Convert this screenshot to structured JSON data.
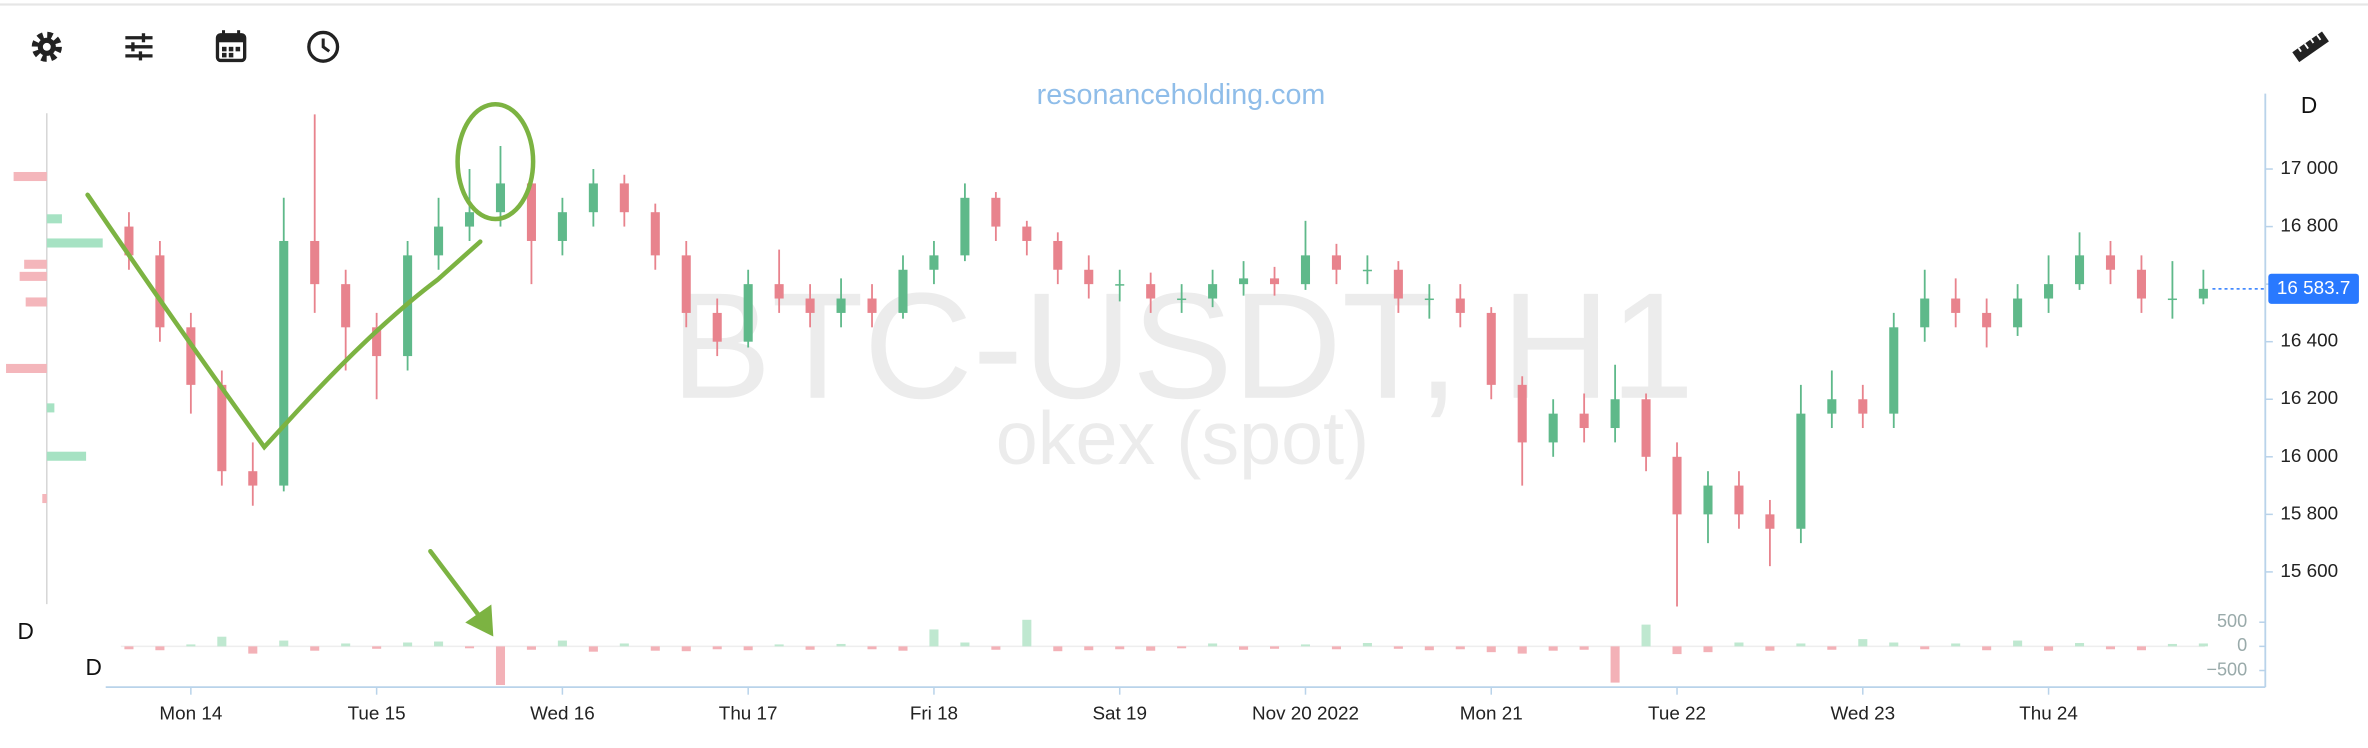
{
  "chart_data": {
    "type": "ohlc",
    "title": "BTC-USDT, H1",
    "subtitle": "okex (spot)",
    "watermark": "resonanceholding.com",
    "interval_label": "D",
    "up_color": "#5fb98a",
    "down_color": "#e8838d",
    "x": [
      -8,
      -4,
      0,
      4,
      8,
      12,
      16,
      20,
      24,
      28,
      32,
      36,
      40,
      44,
      48,
      52,
      56,
      60,
      64,
      68,
      72,
      76,
      80,
      84,
      88,
      92,
      96,
      100,
      104,
      108,
      112,
      116,
      120,
      124,
      128,
      132,
      136,
      140,
      144,
      148,
      152,
      156,
      160,
      164,
      168,
      172,
      176,
      180,
      184,
      188,
      192,
      196,
      200,
      204,
      208,
      212,
      216,
      220,
      224,
      228,
      232,
      236,
      240,
      244,
      248,
      252,
      256,
      260
    ],
    "open": [
      16800,
      16700,
      16450,
      16250,
      15950,
      15900,
      16750,
      16600,
      16450,
      16350,
      16700,
      16800,
      16850,
      16950,
      16750,
      16850,
      16950,
      16850,
      16700,
      16500,
      16400,
      16600,
      16550,
      16500,
      16550,
      16500,
      16650,
      16700,
      16900,
      16800,
      16750,
      16650,
      16600,
      16600,
      16550,
      16550,
      16600,
      16620,
      16600,
      16700,
      16650,
      16650,
      16550,
      16550,
      16500,
      16250,
      16050,
      16150,
      16100,
      16200,
      16000,
      15800,
      15900,
      15800,
      15750,
      16150,
      16200,
      16150,
      16450,
      16550,
      16500,
      16450,
      16550,
      16600,
      16700,
      16650,
      16550,
      16550
    ],
    "high": [
      16850,
      16750,
      16500,
      16300,
      16050,
      16900,
      17190,
      16650,
      16500,
      16750,
      16900,
      17000,
      17080,
      17000,
      16900,
      17000,
      16980,
      16880,
      16750,
      16550,
      16650,
      16720,
      16600,
      16620,
      16600,
      16700,
      16750,
      16950,
      16920,
      16820,
      16780,
      16700,
      16650,
      16640,
      16600,
      16650,
      16680,
      16660,
      16820,
      16740,
      16700,
      16680,
      16600,
      16600,
      16520,
      16280,
      16200,
      16220,
      16320,
      16220,
      16050,
      15950,
      15950,
      15850,
      16250,
      16300,
      16250,
      16500,
      16650,
      16620,
      16550,
      16600,
      16700,
      16780,
      16750,
      16700,
      16680,
      16650
    ],
    "low": [
      16650,
      16400,
      16150,
      15900,
      15830,
      15880,
      16500,
      16300,
      16200,
      16300,
      16650,
      16750,
      16800,
      16600,
      16700,
      16800,
      16800,
      16650,
      16450,
      16350,
      16380,
      16500,
      16450,
      16450,
      16450,
      16480,
      16600,
      16680,
      16750,
      16700,
      16600,
      16550,
      16540,
      16500,
      16500,
      16520,
      16560,
      16560,
      16580,
      16600,
      16600,
      16500,
      16480,
      16450,
      16200,
      15900,
      16000,
      16050,
      16050,
      15950,
      15480,
      15700,
      15750,
      15620,
      15700,
      16100,
      16100,
      16100,
      16400,
      16450,
      16380,
      16420,
      16500,
      16580,
      16600,
      16500,
      16480,
      16530
    ],
    "close": [
      16700,
      16450,
      16250,
      15950,
      15900,
      16750,
      16600,
      16450,
      16350,
      16700,
      16800,
      16850,
      16950,
      16750,
      16850,
      16950,
      16850,
      16700,
      16500,
      16400,
      16600,
      16550,
      16500,
      16550,
      16500,
      16650,
      16700,
      16900,
      16800,
      16750,
      16650,
      16600,
      16600,
      16550,
      16550,
      16600,
      16620,
      16600,
      16700,
      16650,
      16650,
      16550,
      16550,
      16500,
      16250,
      16050,
      16150,
      16100,
      16200,
      16000,
      15800,
      15900,
      15800,
      15750,
      16150,
      16200,
      16150,
      16450,
      16550,
      16500,
      16450,
      16550,
      16600,
      16700,
      16650,
      16550,
      16550,
      16583.7
    ],
    "last_price": {
      "value": 16583.7,
      "label": "16 583.7"
    },
    "price_label_color": "#2979ff",
    "xlim": [
      -11,
      268
    ],
    "xticks": [
      {
        "value": 0,
        "label": "Mon 14"
      },
      {
        "value": 24,
        "label": "Tue 15"
      },
      {
        "value": 48,
        "label": "Wed 16"
      },
      {
        "value": 72,
        "label": "Thu 17"
      },
      {
        "value": 96,
        "label": "Fri 18"
      },
      {
        "value": 120,
        "label": "Sat 19"
      },
      {
        "value": 144,
        "label": "Nov 20 2022"
      },
      {
        "value": 168,
        "label": "Mon 21"
      },
      {
        "value": 192,
        "label": "Tue 22"
      },
      {
        "value": 216,
        "label": "Wed 23"
      },
      {
        "value": 240,
        "label": "Thu 24"
      }
    ],
    "ylim": [
      15462,
      17262
    ],
    "yticks": [
      {
        "value": 15600,
        "label": "15 600"
      },
      {
        "value": 15800,
        "label": "15 800"
      },
      {
        "value": 16000,
        "label": "16 000"
      },
      {
        "value": 16200,
        "label": "16 200"
      },
      {
        "value": 16400,
        "label": "16 400"
      },
      {
        "value": 16600,
        "label": "16 600"
      },
      {
        "value": 16800,
        "label": "16 800"
      },
      {
        "value": 17000,
        "label": "17 000"
      }
    ],
    "volume": {
      "values": [
        -60,
        -80,
        40,
        200,
        -150,
        120,
        -90,
        60,
        -50,
        80,
        100,
        -40,
        -800,
        -70,
        120,
        -110,
        60,
        -90,
        -100,
        -60,
        -80,
        40,
        -70,
        50,
        -60,
        -90,
        350,
        80,
        -70,
        550,
        -100,
        -80,
        -60,
        -90,
        -40,
        60,
        -70,
        -50,
        40,
        -60,
        70,
        -50,
        -80,
        -60,
        -120,
        -150,
        -90,
        -70,
        -750,
        450,
        -160,
        -120,
        80,
        -90,
        60,
        -70,
        150,
        80,
        -60,
        60,
        -80,
        120,
        -90,
        70,
        -60,
        -80,
        50,
        60
      ],
      "up_color": "#bfe8d0",
      "down_color": "#f3b1b7",
      "ylim": [
        -844,
        719
      ],
      "yticks": [
        500,
        0,
        {
          "value": -500,
          "label": "−500"
        }
      ]
    },
    "volume_profile": {
      "prices": [
        16974,
        16827,
        16743,
        16669,
        16627,
        16538,
        16307,
        16170,
        16002,
        15855
      ],
      "values": [
        -22,
        10,
        37,
        -15,
        -18,
        -14,
        -27,
        5,
        26,
        -3
      ],
      "up_color": "#a6e2c3",
      "down_color": "#f4b6bb"
    }
  }
}
